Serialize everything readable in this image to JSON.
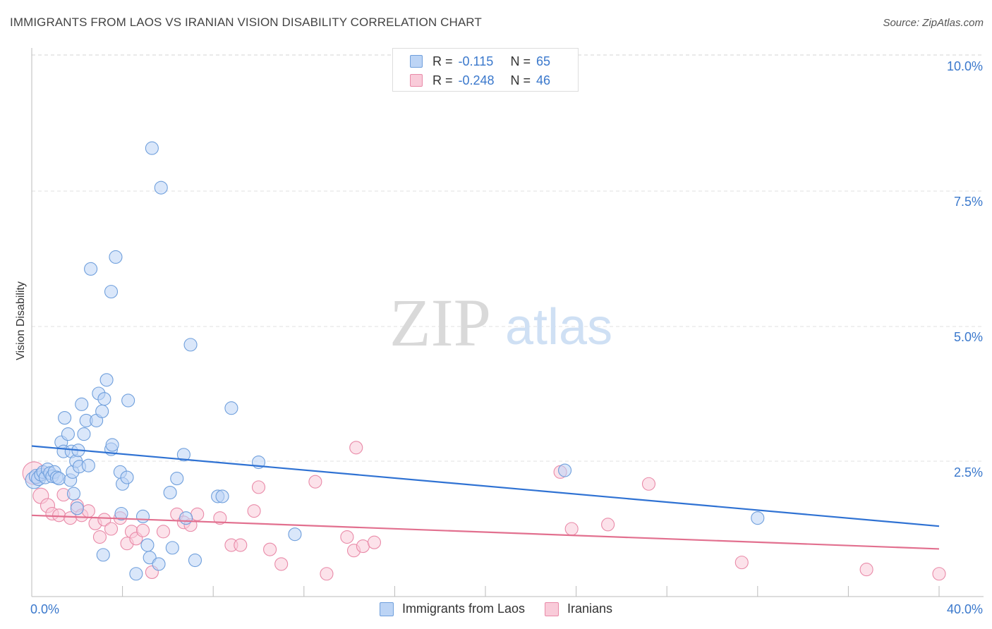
{
  "header": {
    "title": "IMMIGRANTS FROM LAOS VS IRANIAN VISION DISABILITY CORRELATION CHART",
    "source": "Source: ZipAtlas.com"
  },
  "watermark": {
    "zip": "ZIP",
    "atlas": "atlas"
  },
  "legend_top": {
    "r_label": "R =",
    "n_label": "N =",
    "laos": {
      "r": "-0.115",
      "n": "65"
    },
    "iran": {
      "r": "-0.248",
      "n": "46"
    }
  },
  "legend_bottom": {
    "laos": "Immigrants from Laos",
    "iran": "Iranians"
  },
  "colors": {
    "laos_fill": "#bcd4f5",
    "laos_stroke": "#6f9fdc",
    "laos_line": "#2f72d3",
    "iran_fill": "#f9cbd9",
    "iran_stroke": "#e98aa8",
    "iran_line": "#e2708f",
    "tick_text": "#3a78cc"
  },
  "chart_data": {
    "type": "scatter",
    "title": "IMMIGRANTS FROM LAOS VS IRANIAN VISION DISABILITY CORRELATION CHART",
    "xlabel": "",
    "ylabel": "Vision Disability",
    "xlim": [
      0,
      40
    ],
    "ylim": [
      0,
      10.5
    ],
    "x_tick_labels": [
      {
        "value": 0,
        "label": "0.0%"
      },
      {
        "value": 40,
        "label": "40.0%"
      }
    ],
    "y_tick_labels": [
      {
        "value": 2.5,
        "label": "2.5%"
      },
      {
        "value": 5.0,
        "label": "5.0%"
      },
      {
        "value": 7.5,
        "label": "7.5%"
      },
      {
        "value": 10.0,
        "label": "10.0%"
      }
    ],
    "series": [
      {
        "name": "Immigrants from Laos",
        "r": -0.115,
        "n": 65,
        "trend": {
          "x": [
            0,
            40
          ],
          "y": [
            2.78,
            1.3
          ]
        },
        "points": [
          [
            0.1,
            2.15,
            12
          ],
          [
            0.2,
            2.22,
            10
          ],
          [
            0.3,
            2.18,
            10
          ],
          [
            0.4,
            2.25,
            9
          ],
          [
            0.5,
            2.3,
            9
          ],
          [
            0.6,
            2.2,
            9
          ],
          [
            0.7,
            2.35,
            9
          ],
          [
            0.8,
            2.28,
            9
          ],
          [
            0.9,
            2.22,
            9
          ],
          [
            1.0,
            2.3,
            9
          ],
          [
            1.1,
            2.2,
            9
          ],
          [
            1.2,
            2.18,
            9
          ],
          [
            1.3,
            2.85,
            9
          ],
          [
            1.4,
            2.68,
            9
          ],
          [
            1.45,
            3.3,
            9
          ],
          [
            1.6,
            3.0,
            9
          ],
          [
            1.7,
            2.15,
            9
          ],
          [
            1.75,
            2.68,
            9
          ],
          [
            1.8,
            2.3,
            9
          ],
          [
            1.85,
            1.9,
            9
          ],
          [
            1.95,
            2.5,
            9
          ],
          [
            2.0,
            1.63,
            9
          ],
          [
            2.05,
            2.7,
            9
          ],
          [
            2.1,
            2.4,
            9
          ],
          [
            2.2,
            3.55,
            9
          ],
          [
            2.3,
            3.0,
            9
          ],
          [
            2.4,
            3.25,
            9
          ],
          [
            2.5,
            2.42,
            9
          ],
          [
            2.6,
            6.05,
            9
          ],
          [
            2.85,
            3.25,
            9
          ],
          [
            2.95,
            3.75,
            9
          ],
          [
            3.1,
            3.42,
            9
          ],
          [
            3.15,
            0.77,
            9
          ],
          [
            3.2,
            3.65,
            9
          ],
          [
            3.3,
            4.0,
            9
          ],
          [
            3.5,
            5.63,
            9
          ],
          [
            3.5,
            2.72,
            9
          ],
          [
            3.55,
            2.8,
            9
          ],
          [
            3.7,
            6.27,
            9
          ],
          [
            3.9,
            2.3,
            9
          ],
          [
            3.95,
            1.53,
            9
          ],
          [
            4.0,
            2.08,
            9
          ],
          [
            4.2,
            2.2,
            9
          ],
          [
            4.25,
            3.62,
            9
          ],
          [
            4.6,
            0.42,
            9
          ],
          [
            4.9,
            1.48,
            9
          ],
          [
            5.1,
            0.95,
            9
          ],
          [
            5.2,
            0.72,
            9
          ],
          [
            5.3,
            8.28,
            9
          ],
          [
            5.6,
            0.6,
            9
          ],
          [
            5.7,
            7.55,
            9
          ],
          [
            6.1,
            1.92,
            9
          ],
          [
            6.2,
            0.9,
            9
          ],
          [
            6.4,
            2.18,
            9
          ],
          [
            6.7,
            2.62,
            9
          ],
          [
            6.8,
            1.45,
            9
          ],
          [
            7.0,
            4.65,
            9
          ],
          [
            7.2,
            0.67,
            9
          ],
          [
            8.2,
            1.85,
            9
          ],
          [
            8.4,
            1.85,
            9
          ],
          [
            8.8,
            3.48,
            9
          ],
          [
            10.0,
            2.48,
            9
          ],
          [
            11.6,
            1.15,
            9
          ],
          [
            23.5,
            2.33,
            9
          ],
          [
            32.0,
            1.45,
            9
          ]
        ]
      },
      {
        "name": "Iranians",
        "r": -0.248,
        "n": 46,
        "trend": {
          "x": [
            0,
            40
          ],
          "y": [
            1.5,
            0.88
          ]
        },
        "points": [
          [
            0.1,
            2.28,
            16
          ],
          [
            0.4,
            1.86,
            11
          ],
          [
            0.7,
            1.68,
            10
          ],
          [
            0.9,
            1.53,
            9
          ],
          [
            1.2,
            1.5,
            9
          ],
          [
            1.4,
            1.88,
            9
          ],
          [
            1.7,
            1.45,
            9
          ],
          [
            2.0,
            1.68,
            9
          ],
          [
            2.2,
            1.5,
            9
          ],
          [
            2.5,
            1.58,
            9
          ],
          [
            2.8,
            1.35,
            9
          ],
          [
            3.0,
            1.1,
            9
          ],
          [
            3.2,
            1.42,
            9
          ],
          [
            3.5,
            1.25,
            9
          ],
          [
            3.9,
            1.45,
            9
          ],
          [
            4.2,
            0.98,
            9
          ],
          [
            4.4,
            1.2,
            9
          ],
          [
            4.6,
            1.07,
            9
          ],
          [
            4.9,
            1.22,
            9
          ],
          [
            5.3,
            0.45,
            9
          ],
          [
            5.8,
            1.2,
            9
          ],
          [
            6.4,
            1.52,
            9
          ],
          [
            6.7,
            1.37,
            9
          ],
          [
            7.0,
            1.32,
            9
          ],
          [
            7.3,
            1.52,
            9
          ],
          [
            8.3,
            1.45,
            9
          ],
          [
            8.8,
            0.95,
            9
          ],
          [
            9.2,
            0.95,
            9
          ],
          [
            9.8,
            1.58,
            9
          ],
          [
            10.0,
            2.02,
            9
          ],
          [
            10.5,
            0.87,
            9
          ],
          [
            11.0,
            0.6,
            9
          ],
          [
            12.5,
            2.12,
            9
          ],
          [
            13.0,
            0.42,
            9
          ],
          [
            13.9,
            1.1,
            9
          ],
          [
            14.2,
            0.85,
            9
          ],
          [
            14.3,
            2.75,
            9
          ],
          [
            14.6,
            0.93,
            9
          ],
          [
            15.1,
            1.0,
            9
          ],
          [
            23.3,
            2.3,
            9
          ],
          [
            23.8,
            1.25,
            9
          ],
          [
            25.4,
            1.33,
            9
          ],
          [
            27.2,
            2.08,
            9
          ],
          [
            31.3,
            0.63,
            9
          ],
          [
            36.8,
            0.5,
            9
          ],
          [
            40.0,
            0.42,
            9
          ]
        ]
      }
    ]
  }
}
